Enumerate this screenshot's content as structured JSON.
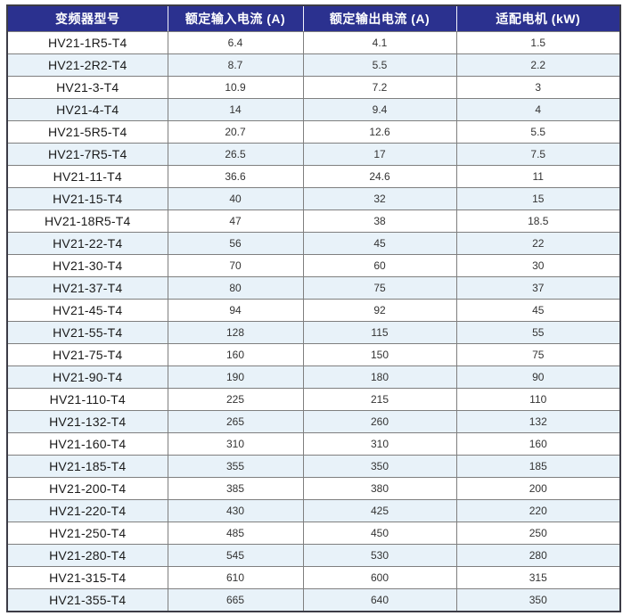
{
  "colors": {
    "header_bg": "#2b318f",
    "header_text": "#ffffff",
    "row_bg": "#ffffff",
    "alt_row_bg": "#e8f2f9",
    "inner_border": "#7f7f7f",
    "outer_border": "#3c3c46",
    "model_text": "#1a1a1a",
    "value_text": "#333333"
  },
  "table": {
    "columns": [
      "变频器型号",
      "额定输入电流 (A)",
      "额定输出电流 (A)",
      "适配电机 (kW)"
    ],
    "rows": [
      {
        "model": "HV21-1R5-T4",
        "input_current": "6.4",
        "output_current": "4.1",
        "motor_kw": "1.5"
      },
      {
        "model": "HV21-2R2-T4",
        "input_current": "8.7",
        "output_current": "5.5",
        "motor_kw": "2.2"
      },
      {
        "model": "HV21-3-T4",
        "input_current": "10.9",
        "output_current": "7.2",
        "motor_kw": "3"
      },
      {
        "model": "HV21-4-T4",
        "input_current": "14",
        "output_current": "9.4",
        "motor_kw": "4"
      },
      {
        "model": "HV21-5R5-T4",
        "input_current": "20.7",
        "output_current": "12.6",
        "motor_kw": "5.5"
      },
      {
        "model": "HV21-7R5-T4",
        "input_current": "26.5",
        "output_current": "17",
        "motor_kw": "7.5"
      },
      {
        "model": "HV21-11-T4",
        "input_current": "36.6",
        "output_current": "24.6",
        "motor_kw": "11"
      },
      {
        "model": "HV21-15-T4",
        "input_current": "40",
        "output_current": "32",
        "motor_kw": "15"
      },
      {
        "model": "HV21-18R5-T4",
        "input_current": "47",
        "output_current": "38",
        "motor_kw": "18.5"
      },
      {
        "model": "HV21-22-T4",
        "input_current": "56",
        "output_current": "45",
        "motor_kw": "22"
      },
      {
        "model": "HV21-30-T4",
        "input_current": "70",
        "output_current": "60",
        "motor_kw": "30"
      },
      {
        "model": "HV21-37-T4",
        "input_current": "80",
        "output_current": "75",
        "motor_kw": "37"
      },
      {
        "model": "HV21-45-T4",
        "input_current": "94",
        "output_current": "92",
        "motor_kw": "45"
      },
      {
        "model": "HV21-55-T4",
        "input_current": "128",
        "output_current": "115",
        "motor_kw": "55"
      },
      {
        "model": "HV21-75-T4",
        "input_current": "160",
        "output_current": "150",
        "motor_kw": "75"
      },
      {
        "model": "HV21-90-T4",
        "input_current": "190",
        "output_current": "180",
        "motor_kw": "90"
      },
      {
        "model": "HV21-110-T4",
        "input_current": "225",
        "output_current": "215",
        "motor_kw": "110"
      },
      {
        "model": "HV21-132-T4",
        "input_current": "265",
        "output_current": "260",
        "motor_kw": "132"
      },
      {
        "model": "HV21-160-T4",
        "input_current": "310",
        "output_current": "310",
        "motor_kw": "160"
      },
      {
        "model": "HV21-185-T4",
        "input_current": "355",
        "output_current": "350",
        "motor_kw": "185"
      },
      {
        "model": "HV21-200-T4",
        "input_current": "385",
        "output_current": "380",
        "motor_kw": "200"
      },
      {
        "model": "HV21-220-T4",
        "input_current": "430",
        "output_current": "425",
        "motor_kw": "220"
      },
      {
        "model": "HV21-250-T4",
        "input_current": "485",
        "output_current": "450",
        "motor_kw": "250"
      },
      {
        "model": "HV21-280-T4",
        "input_current": "545",
        "output_current": "530",
        "motor_kw": "280"
      },
      {
        "model": "HV21-315-T4",
        "input_current": "610",
        "output_current": "600",
        "motor_kw": "315"
      },
      {
        "model": "HV21-355-T4",
        "input_current": "665",
        "output_current": "640",
        "motor_kw": "350"
      }
    ]
  }
}
